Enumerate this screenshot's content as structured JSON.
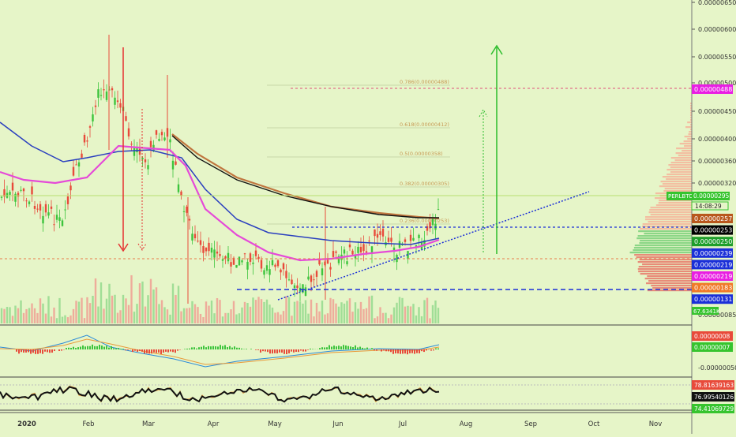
{
  "chart_data": {
    "type": "line",
    "symbol": "PERLBTC",
    "countdown": "14:08:29",
    "x_ticks": [
      "2020",
      "Feb",
      "Mar",
      "Apr",
      "May",
      "Jun",
      "Jul",
      "Aug",
      "Sep",
      "Oct",
      "Nov"
    ],
    "y_ticks": [
      "0.00000650",
      "0.00000600",
      "0.00000550",
      "0.00000500",
      "0.00000450",
      "0.00000400",
      "0.00000360",
      "0.00000320",
      "0.00000295"
    ],
    "volume_tick": "0.00000085",
    "macd_tick": "-0.00000050",
    "ylim": [
      8.5e-07,
      6.5e-06
    ],
    "fib_levels": [
      {
        "label": "0.786(0.00000488)",
        "value": 4.88e-06
      },
      {
        "label": "0.618(0.00000412)",
        "value": 4.12e-06
      },
      {
        "label": "0.5(0.00000358)",
        "value": 3.58e-06
      },
      {
        "label": "0.382(0.00000305)",
        "value": 3.05e-06
      },
      {
        "label": "0.236(0.00000253)",
        "value": 2.53e-06
      }
    ],
    "price_labels": [
      {
        "text": "0.00000488",
        "color": "#e91ee3",
        "value": 4.88e-06
      },
      {
        "text": "0.00000295",
        "color": "#36c42e",
        "value": 2.95e-06
      },
      {
        "text": "0.00000257",
        "color": "#b8571d",
        "value": 2.57e-06
      },
      {
        "text": "0.00000253",
        "color": "#000000",
        "value": 2.53e-06
      },
      {
        "text": "0.00000250",
        "color": "#1e9e2a",
        "value": 2.5e-06
      },
      {
        "text": "0.00000239",
        "color": "#1a2fd8",
        "value": 2.39e-06
      },
      {
        "text": "0.00000219",
        "color": "#1a2fd8",
        "value": 2.19e-06
      },
      {
        "text": "0.00000219",
        "color": "#e91ee3",
        "value": 2.19e-06
      },
      {
        "text": "0.00000183",
        "color": "#f07a28",
        "value": 1.83e-06
      },
      {
        "text": "0.00000131",
        "color": "#1a2fd8",
        "value": 1.31e-06
      }
    ],
    "volume_label": "67.6341K",
    "macd_labels": [
      "0.00000008",
      "0.00000007"
    ],
    "rsi_labels": [
      "78.81639163",
      "76.99540126",
      "74.41069729"
    ],
    "series": [
      {
        "name": "",
        "values": [
          2e-06,
          2.2e-06,
          2.1e-06,
          2.3e-06,
          2.4e-06,
          2.6e-06,
          2.7e-06,
          2.4e-06,
          2.2e-06
        ]
      }
    ]
  }
}
